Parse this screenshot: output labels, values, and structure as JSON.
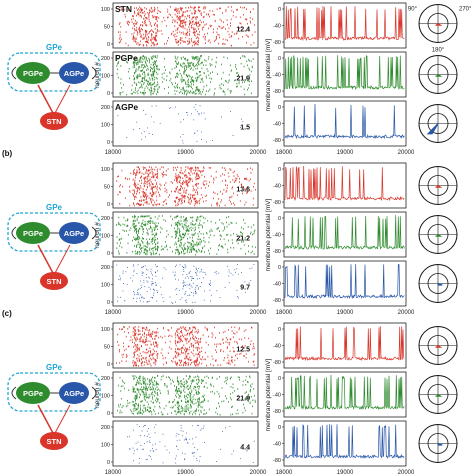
{
  "colors": {
    "stn": "#d9352a",
    "pgpe": "#2e8b2e",
    "agpe": "#2856a8",
    "gpe_box": "#22a6d6",
    "axis": "#222222"
  },
  "panels": [
    {
      "label": "",
      "rates": {
        "stn": "12.4",
        "pgpe": "21.9",
        "agpe": "1.5"
      },
      "raster_titles": {
        "stn": "STN",
        "pgpe": "PGPe",
        "agpe": "AGPe"
      },
      "polar_labels": {
        "left": "90°",
        "right": "270°",
        "bottom": "180°"
      }
    },
    {
      "label": "(b)",
      "rates": {
        "stn": "13.6",
        "pgpe": "21.2",
        "agpe": "9.7"
      }
    },
    {
      "label": "(c)",
      "rates": {
        "stn": "12.5",
        "pgpe": "21.9",
        "agpe": "4.4"
      }
    }
  ],
  "diagram": {
    "gpe": "GPe",
    "pgpe": "PGPe",
    "agpe": "AGPe",
    "stn": "STN"
  },
  "axes": {
    "ylabel_raster": "neuron #",
    "ylabel_trace": "membrane potential [mV]",
    "raster_xticks": [
      "18000",
      "19000",
      "20000"
    ],
    "trace_xticks": [
      "18000",
      "19000",
      "20000"
    ],
    "raster_yticks_stn": [
      "0",
      "50",
      "100"
    ],
    "raster_yticks_pgpe": [
      "0",
      "100",
      "200"
    ],
    "raster_yticks_agpe": [
      "0",
      "100",
      "200"
    ],
    "trace_yticks": [
      "-80",
      "-40",
      "0"
    ]
  }
}
